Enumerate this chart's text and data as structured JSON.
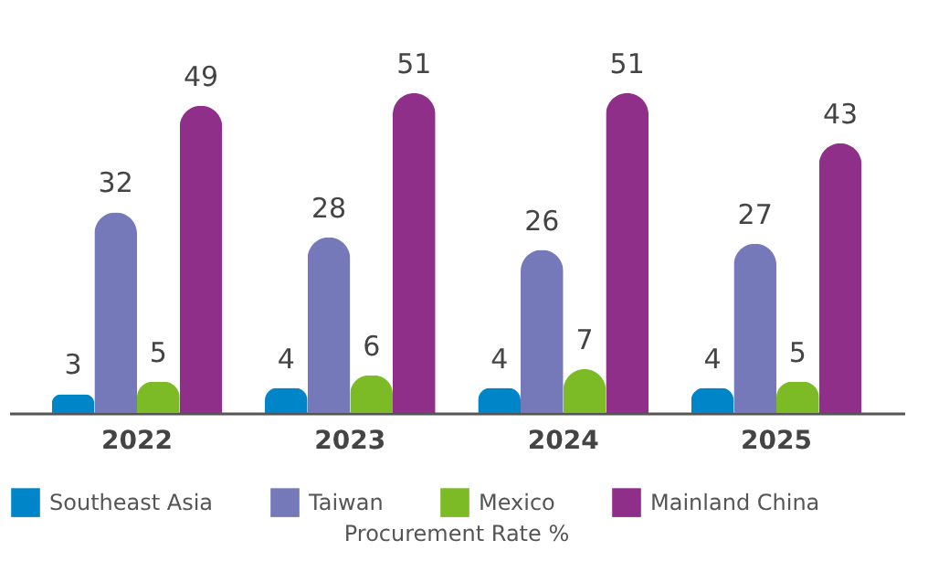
{
  "chart_data": {
    "type": "bar",
    "categories": [
      "2022",
      "2023",
      "2024",
      "2025"
    ],
    "xlabel": "Procurement Rate %",
    "series": [
      {
        "name": "Southeast Asia",
        "color": "#0085c8",
        "values": [
          3,
          4,
          4,
          4
        ]
      },
      {
        "name": "Taiwan",
        "color": "#7679b9",
        "values": [
          32,
          28,
          26,
          27
        ]
      },
      {
        "name": "Mexico",
        "color": "#7cbb26",
        "values": [
          5,
          6,
          7,
          5
        ]
      },
      {
        "name": "Mainland China",
        "color": "#8f2f89",
        "values": [
          49,
          51,
          51,
          43
        ]
      }
    ],
    "data_labels": true,
    "legend": "bottom",
    "grid": false
  }
}
